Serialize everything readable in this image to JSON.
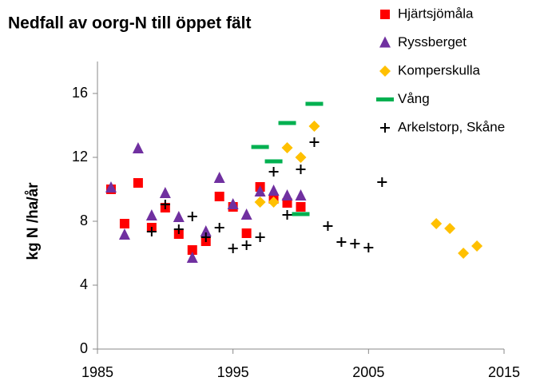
{
  "chart_data": {
    "type": "scatter",
    "title": "Nedfall av oorg-N till öppet fält",
    "y_label": "kg N /ha/år",
    "xlim": [
      1985,
      2015
    ],
    "xticks": [
      1985,
      1995,
      2005,
      2015
    ],
    "ylim": [
      0,
      18
    ],
    "yticks": [
      0,
      4,
      8,
      12,
      16
    ],
    "grid": false,
    "legend_position": "top-right",
    "series": [
      {
        "name": "Hjärtsjömåla",
        "color": "#ff0000",
        "marker": "square",
        "x": [
          1986,
          1987,
          1988,
          1989,
          1990,
          1991,
          1992,
          1993,
          1994,
          1995,
          1996,
          1997,
          1998,
          1999,
          2000
        ],
        "values": [
          10.0,
          7.85,
          10.4,
          7.6,
          8.85,
          7.2,
          6.2,
          6.75,
          9.55,
          8.9,
          7.25,
          10.15,
          9.4,
          9.15,
          8.9
        ]
      },
      {
        "name": "Ryssberget",
        "color": "#7030a0",
        "marker": "triangle",
        "x": [
          1986,
          1987,
          1988,
          1989,
          1990,
          1991,
          1992,
          1993,
          1994,
          1995,
          1996,
          1997,
          1998,
          1999,
          2000
        ],
        "values": [
          10.1,
          7.15,
          12.55,
          8.35,
          9.75,
          8.25,
          5.7,
          7.35,
          10.7,
          9.05,
          8.4,
          9.85,
          9.9,
          9.6,
          9.6
        ]
      },
      {
        "name": "Komperskulla",
        "color": "#ffc000",
        "marker": "diamond",
        "x": [
          1997,
          1998,
          1999,
          2000,
          2001,
          2010,
          2011,
          2012,
          2013
        ],
        "values": [
          9.2,
          9.2,
          12.6,
          12.0,
          13.95,
          7.85,
          7.55,
          6.0,
          6.45
        ]
      },
      {
        "name": "Vång",
        "color": "#00b050",
        "marker": "dash",
        "x": [
          1997,
          1998,
          1999,
          2000,
          2001
        ],
        "values": [
          12.65,
          11.75,
          14.15,
          8.45,
          15.35
        ]
      },
      {
        "name": "Arkelstorp, Skåne",
        "color": "#000000",
        "marker": "plus",
        "x": [
          1989,
          1990,
          1991,
          1992,
          1993,
          1994,
          1995,
          1996,
          1997,
          1998,
          1999,
          2000,
          2001,
          2002,
          2003,
          2004,
          2005,
          2006
        ],
        "values": [
          7.35,
          9.05,
          7.5,
          8.3,
          7.0,
          7.6,
          6.3,
          6.5,
          7.0,
          11.1,
          8.4,
          11.25,
          12.95,
          7.7,
          6.7,
          6.6,
          6.35,
          10.45
        ]
      }
    ]
  }
}
